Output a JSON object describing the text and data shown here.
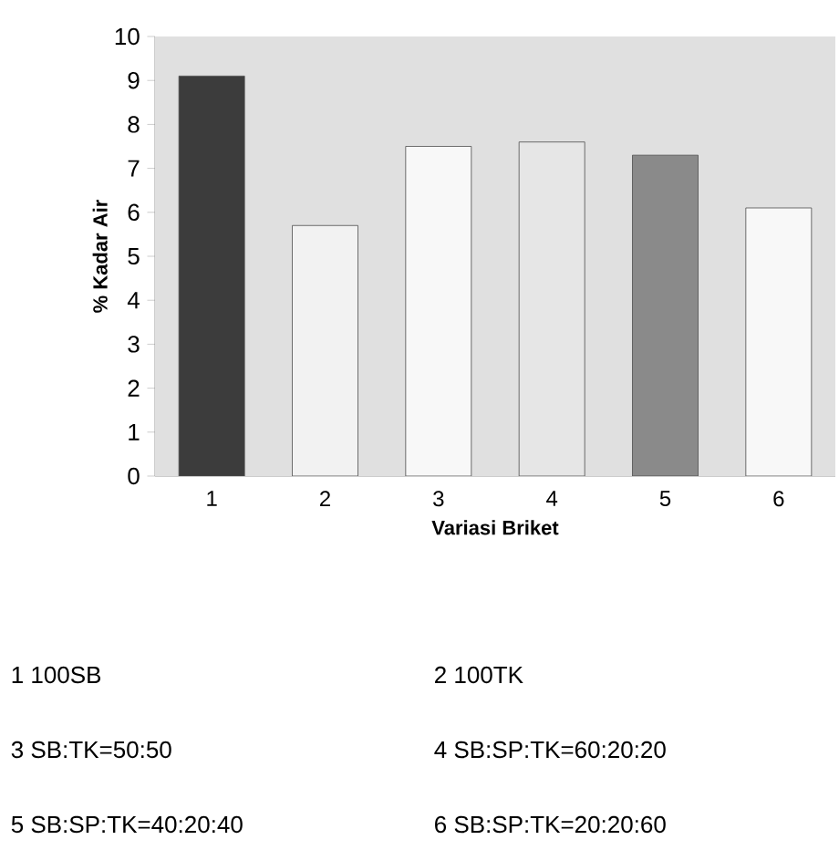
{
  "chart_data": {
    "type": "bar",
    "xlabel": "Variasi Briket",
    "ylabel": "% Kadar Air",
    "categories": [
      "1",
      "2",
      "3",
      "4",
      "5",
      "6"
    ],
    "values": [
      9.1,
      5.7,
      7.5,
      7.6,
      7.3,
      6.1
    ],
    "colors": [
      "#3c3c3c",
      "#f2f2f2",
      "#f8f8f8",
      "#e6e6e6",
      "#8a8a8a",
      "#f8f8f8"
    ],
    "ylim": [
      0,
      10
    ],
    "yticks": [
      0,
      1,
      2,
      3,
      4,
      5,
      6,
      7,
      8,
      9,
      10
    ],
    "grid": false,
    "annotations": [
      "1 100SB",
      "2 100TK",
      "3 SB:TK=50:50",
      "4 SB:SP:TK=60:20:20",
      "5 SB:SP:TK=40:20:40",
      "6 SB:SP:TK=20:20:60"
    ]
  }
}
